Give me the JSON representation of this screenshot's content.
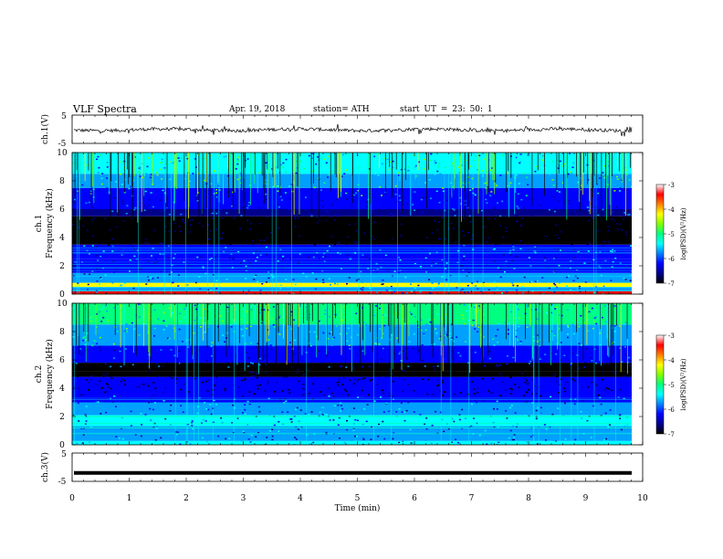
{
  "header": {
    "title": "VLF  Spectra",
    "date": "Apr. 19,  2018",
    "station": "station= ATH",
    "start": "start  UT  =    23: 50: 1"
  },
  "colors": {
    "spectro_scale": [
      "#000000",
      "#00008c",
      "#0000ff",
      "#00a0ff",
      "#00ffff",
      "#00ff80",
      "#80ff00",
      "#ffff00",
      "#ff8000",
      "#ff0000",
      "#ffffff"
    ],
    "trace": "#000000"
  },
  "chart_data": [
    {
      "type": "line",
      "name": "ch1-waveform",
      "ylabel": "ch.1(V)",
      "ylim": [
        -5,
        5
      ],
      "yticks": [
        "5",
        "-5"
      ],
      "xlim": [
        0,
        10
      ],
      "description_level": "noisy trace near 0 V"
    },
    {
      "type": "heatmap",
      "name": "ch1-spectrogram",
      "ylabel_lines": [
        "ch.1",
        "Frequency  (kHz)"
      ],
      "ylim": [
        0,
        10
      ],
      "yticks": [
        "0",
        "2",
        "4",
        "6",
        "8",
        "10"
      ],
      "xlim": [
        0,
        9.8
      ],
      "colorbar": {
        "label": "log(PSD)(V²/Hz)",
        "range": [
          -7,
          -3
        ],
        "ticks": [
          "-3",
          "-4",
          "-5",
          "-6",
          "-7"
        ]
      }
    },
    {
      "type": "heatmap",
      "name": "ch2-spectrogram",
      "ylabel_lines": [
        "ch.2",
        "Frequency  (kHz)"
      ],
      "ylim": [
        0,
        10
      ],
      "yticks": [
        "0",
        "2",
        "4",
        "6",
        "8",
        "10"
      ],
      "xlim": [
        0,
        9.8
      ],
      "colorbar": {
        "label": "log(PSD)(V²/Hz)",
        "range": [
          -7,
          -3
        ],
        "ticks": [
          "-3",
          "-4",
          "-5",
          "-6",
          "-7"
        ]
      }
    },
    {
      "type": "line",
      "name": "ch3-waveform",
      "ylabel": "ch.3(V)",
      "ylim": [
        -5,
        5
      ],
      "yticks": [
        "5",
        "-5"
      ],
      "values_level": -2,
      "xlim": [
        0,
        10
      ]
    }
  ],
  "xaxis": {
    "label": "Time  (min)",
    "range": [
      0,
      10
    ],
    "ticks": [
      "0",
      "1",
      "2",
      "3",
      "4",
      "5",
      "6",
      "7",
      "8",
      "9",
      "10"
    ]
  }
}
